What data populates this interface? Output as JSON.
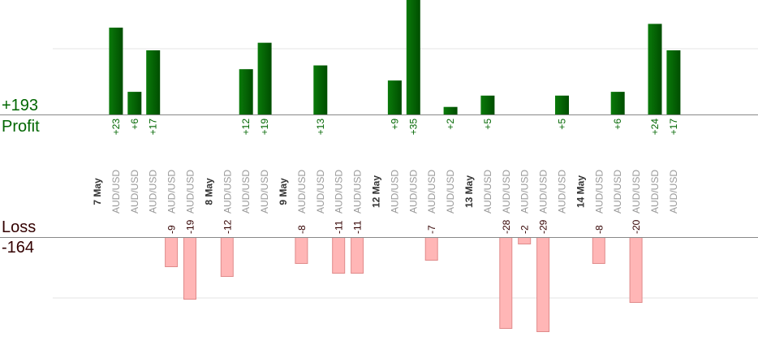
{
  "summary": {
    "profit_total": "+193",
    "profit_label": "Profit",
    "loss_label": "Loss",
    "loss_total": "-164"
  },
  "chart_data": {
    "type": "bar",
    "title": "",
    "xlabel": "",
    "ylabel": "",
    "ylim_profit": [
      0,
      35
    ],
    "ylim_loss": [
      -29,
      0
    ],
    "columns": [
      {
        "kind": "date",
        "label": "7 May"
      },
      {
        "kind": "trade",
        "label": "AUD/USD",
        "value": 23
      },
      {
        "kind": "trade",
        "label": "AUD/USD",
        "value": 6
      },
      {
        "kind": "trade",
        "label": "AUD/USD",
        "value": 17
      },
      {
        "kind": "trade",
        "label": "AUD/USD",
        "value": -9
      },
      {
        "kind": "trade",
        "label": "AUD/USD",
        "value": -19
      },
      {
        "kind": "date",
        "label": "8 May"
      },
      {
        "kind": "trade",
        "label": "AUD/USD",
        "value": -12
      },
      {
        "kind": "trade",
        "label": "AUD/USD",
        "value": 12
      },
      {
        "kind": "trade",
        "label": "AUD/USD",
        "value": 19
      },
      {
        "kind": "date",
        "label": "9 May"
      },
      {
        "kind": "trade",
        "label": "AUD/USD",
        "value": -8
      },
      {
        "kind": "trade",
        "label": "AUD/USD",
        "value": 13
      },
      {
        "kind": "trade",
        "label": "AUD/USD",
        "value": -11
      },
      {
        "kind": "trade",
        "label": "AUD/USD",
        "value": -11
      },
      {
        "kind": "date",
        "label": "12 May"
      },
      {
        "kind": "trade",
        "label": "AUD/USD",
        "value": 9
      },
      {
        "kind": "trade",
        "label": "AUD/USD",
        "value": 35
      },
      {
        "kind": "trade",
        "label": "AUD/USD",
        "value": -7
      },
      {
        "kind": "trade",
        "label": "AUD/USD",
        "value": 2
      },
      {
        "kind": "date",
        "label": "13 May"
      },
      {
        "kind": "trade",
        "label": "AUD/USD",
        "value": 5
      },
      {
        "kind": "trade",
        "label": "AUD/USD",
        "value": -28
      },
      {
        "kind": "trade",
        "label": "AUD/USD",
        "value": -2
      },
      {
        "kind": "trade",
        "label": "AUD/USD",
        "value": -29
      },
      {
        "kind": "trade",
        "label": "AUD/USD",
        "value": 5
      },
      {
        "kind": "date",
        "label": "14 May"
      },
      {
        "kind": "trade",
        "label": "AUD/USD",
        "value": -8
      },
      {
        "kind": "trade",
        "label": "AUD/USD",
        "value": 6
      },
      {
        "kind": "trade",
        "label": "AUD/USD",
        "value": -20
      },
      {
        "kind": "trade",
        "label": "AUD/USD",
        "value": 24
      },
      {
        "kind": "trade",
        "label": "AUD/USD",
        "value": 17
      }
    ],
    "colors": {
      "profit_bar_dark": "#004d00",
      "profit_bar_light": "#0a7a0a",
      "profit_text": "#006600",
      "loss_fill": "#ffb6b6",
      "loss_stroke": "#e08a8a",
      "loss_text": "#330000",
      "axis": "#888888",
      "grid": "#e6e6e6",
      "pair_text": "#999999",
      "date_text": "#333333"
    }
  }
}
